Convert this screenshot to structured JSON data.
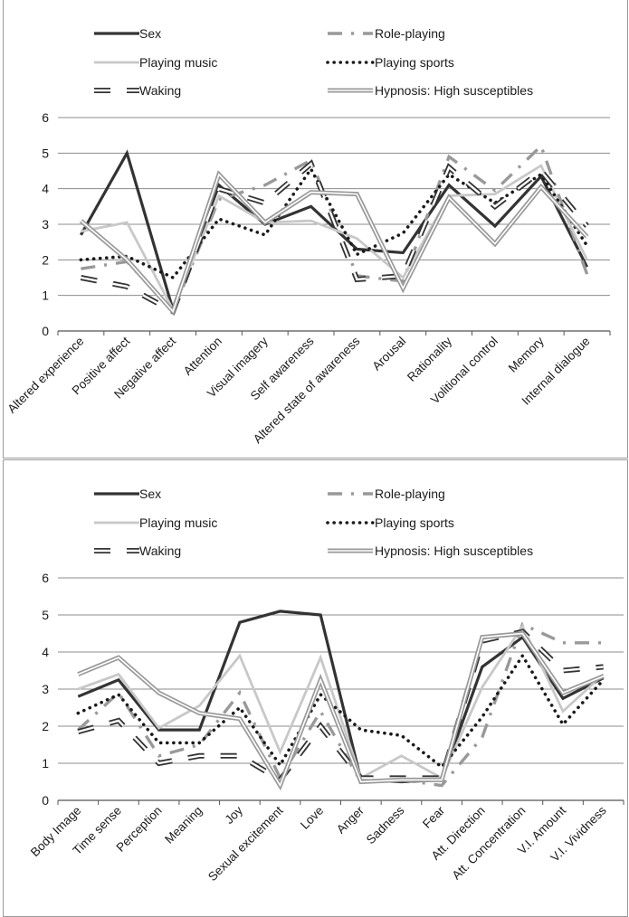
{
  "series_styles": [
    {
      "name": "Sex",
      "color": "#333333",
      "stroke": "solid-thick"
    },
    {
      "name": "Role-playing",
      "color": "#999999",
      "stroke": "dash-dot"
    },
    {
      "name": "Playing music",
      "color": "#c8c8c8",
      "stroke": "solid"
    },
    {
      "name": "Playing sports",
      "color": "#1a1a1a",
      "stroke": "dotted"
    },
    {
      "name": "Waking",
      "color": "#333333",
      "stroke": "hollow-dash"
    },
    {
      "name": "Hypnosis: High susceptibles",
      "color": "#999999",
      "stroke": "double"
    }
  ],
  "chart_data": [
    {
      "type": "line",
      "title": "",
      "xlabel": "",
      "ylabel": "",
      "ylim": [
        0,
        6
      ],
      "yticks": [
        "0",
        "1",
        "2",
        "3",
        "4",
        "5",
        "6"
      ],
      "grid": "horizontal",
      "legend": "top",
      "categories": [
        "Altered experience",
        "Positive affect",
        "Negative affect",
        "Attention",
        "Visual imagery",
        "Self awareness",
        "Altered state of awareness",
        "Arousal",
        "Rationality",
        "Volitional control",
        "Memory",
        "Internal dialogue"
      ],
      "series": [
        {
          "name": "Sex",
          "values": [
            2.7,
            5.0,
            0.6,
            4.1,
            3.0,
            3.5,
            2.3,
            2.2,
            4.1,
            2.95,
            4.35,
            1.8
          ]
        },
        {
          "name": "Role-playing",
          "values": [
            1.75,
            1.95,
            0.55,
            3.7,
            4.1,
            4.8,
            1.55,
            1.4,
            4.9,
            3.95,
            5.2,
            1.6
          ]
        },
        {
          "name": "Playing music",
          "values": [
            2.8,
            3.05,
            0.6,
            3.8,
            3.05,
            3.1,
            2.6,
            1.5,
            3.8,
            3.85,
            4.65,
            2.0
          ]
        },
        {
          "name": "Playing sports",
          "values": [
            2.0,
            2.1,
            1.5,
            3.15,
            2.7,
            4.55,
            2.15,
            2.75,
            4.4,
            3.6,
            4.4,
            2.4
          ]
        },
        {
          "name": "Waking",
          "values": [
            1.5,
            1.25,
            0.55,
            4.0,
            3.6,
            4.7,
            1.45,
            1.55,
            4.6,
            3.5,
            4.5,
            2.95
          ]
        },
        {
          "name": "Hypnosis: High susceptibles",
          "values": [
            3.1,
            2.0,
            0.55,
            4.4,
            3.05,
            3.9,
            3.85,
            1.2,
            3.75,
            2.45,
            4.05,
            2.65
          ]
        }
      ]
    },
    {
      "type": "line",
      "title": "",
      "xlabel": "",
      "ylabel": "",
      "ylim": [
        0,
        6
      ],
      "yticks": [
        "0",
        "1",
        "2",
        "3",
        "4",
        "5",
        "6"
      ],
      "grid": "horizontal",
      "legend": "top",
      "categories": [
        "Body Image",
        "Time sense",
        "Perception",
        "Meaning",
        "Joy",
        "Sexual excitement",
        "Love",
        "Anger",
        "Sadness",
        "Fear",
        "Att. Direction",
        "Att. Concentration",
        "V.I. Amount",
        "V.I. Vividness"
      ],
      "series": [
        {
          "name": "Sex",
          "values": [
            2.8,
            3.25,
            1.9,
            1.9,
            4.8,
            5.1,
            5.0,
            0.55,
            0.5,
            0.55,
            3.6,
            4.4,
            2.75,
            3.3
          ]
        },
        {
          "name": "Role-playing",
          "values": [
            1.9,
            2.9,
            1.2,
            1.5,
            2.9,
            0.6,
            2.4,
            0.5,
            0.55,
            0.4,
            1.7,
            4.75,
            4.25,
            4.25
          ]
        },
        {
          "name": "Playing music",
          "values": [
            3.0,
            3.4,
            1.95,
            2.55,
            3.9,
            1.3,
            3.85,
            0.6,
            1.2,
            0.6,
            3.05,
            4.7,
            2.4,
            3.4
          ]
        },
        {
          "name": "Playing sports",
          "values": [
            2.35,
            2.85,
            1.55,
            1.55,
            2.5,
            0.95,
            2.85,
            1.9,
            1.75,
            0.9,
            2.25,
            3.9,
            2.05,
            3.25
          ]
        },
        {
          "name": "Waking",
          "values": [
            1.85,
            2.15,
            1.0,
            1.2,
            1.2,
            0.55,
            2.0,
            0.6,
            0.6,
            0.6,
            4.3,
            4.55,
            3.5,
            3.6
          ]
        },
        {
          "name": "Hypnosis: High susceptibles",
          "values": [
            3.4,
            3.85,
            2.9,
            2.35,
            2.2,
            0.4,
            3.25,
            0.5,
            0.55,
            0.55,
            4.4,
            4.5,
            2.9,
            3.35
          ]
        }
      ]
    }
  ]
}
